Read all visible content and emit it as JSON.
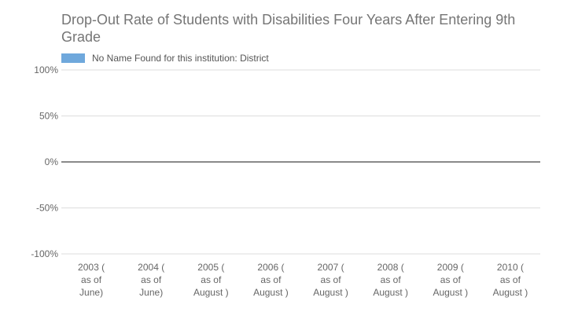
{
  "chart_data": {
    "type": "bar",
    "title": "Drop-Out Rate of Students with Disabilities Four Years After Entering 9th Grade",
    "xlabel": "",
    "ylabel": "",
    "categories": [
      [
        "2003 (",
        "as of",
        "June)"
      ],
      [
        "2004 (",
        "as of",
        "June)"
      ],
      [
        "2005 (",
        "as of",
        "August )"
      ],
      [
        "2006 (",
        "as of",
        "August )"
      ],
      [
        "2007 (",
        "as of",
        "August )"
      ],
      [
        "2008 (",
        "as of",
        "August )"
      ],
      [
        "2009 (",
        "as of",
        "August )"
      ],
      [
        "2010 (",
        "as of",
        "August )"
      ]
    ],
    "series": [
      {
        "name": "No Name Found for this institution: District",
        "values": [
          null,
          null,
          null,
          null,
          null,
          null,
          null,
          null
        ],
        "color": "#6fa8dc"
      }
    ],
    "ylim": [
      -100,
      100
    ],
    "yticks": [
      {
        "value": 100,
        "label": "100%"
      },
      {
        "value": 50,
        "label": "50%"
      },
      {
        "value": 0,
        "label": "0%"
      },
      {
        "value": -50,
        "label": "-50%"
      },
      {
        "value": -100,
        "label": "-100%"
      }
    ],
    "grid": true,
    "legend_position": "top-left",
    "colors": {
      "grid": "#dddddd",
      "zero_line": "#444444",
      "axis_text": "#666666",
      "title": "#757575"
    }
  }
}
